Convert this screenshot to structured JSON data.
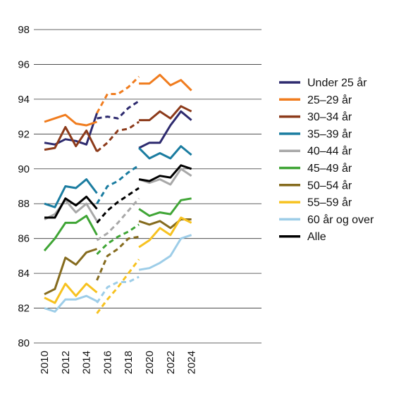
{
  "chart_data": {
    "type": "line",
    "title": "",
    "xlabel": "",
    "ylabel": "",
    "xlim": [
      2010,
      2024.5
    ],
    "ylim": [
      80,
      98
    ],
    "yticks": [
      80,
      82,
      84,
      86,
      88,
      90,
      92,
      94,
      96,
      98
    ],
    "xticks": [
      2010,
      2012,
      2014,
      2016,
      2018,
      2020,
      2022,
      2024
    ],
    "grid": "horizontal",
    "legend_position": "right",
    "series": [
      {
        "name": "Under 25 år",
        "color": "#2d2a6e",
        "segments": [
          {
            "style": "solid",
            "x": [
              2010,
              2011,
              2012,
              2013,
              2014,
              2015
            ],
            "y": [
              91.5,
              91.4,
              91.7,
              91.6,
              91.4,
              93.2
            ]
          },
          {
            "style": "dashed",
            "x": [
              2015,
              2016,
              2017,
              2018,
              2019
            ],
            "y": [
              92.9,
              93.0,
              92.9,
              93.5,
              93.9
            ]
          },
          {
            "style": "solid",
            "x": [
              2019,
              2020,
              2021,
              2022,
              2023,
              2024
            ],
            "y": [
              91.2,
              91.5,
              91.5,
              92.5,
              93.3,
              92.8
            ]
          }
        ]
      },
      {
        "name": "25–29 år",
        "color": "#f07c1e",
        "segments": [
          {
            "style": "solid",
            "x": [
              2010,
              2011,
              2012,
              2013,
              2014,
              2015
            ],
            "y": [
              92.7,
              92.9,
              93.1,
              92.6,
              92.5,
              92.7
            ]
          },
          {
            "style": "dashed",
            "x": [
              2015,
              2016,
              2017,
              2018,
              2019
            ],
            "y": [
              93.2,
              94.3,
              94.3,
              94.7,
              95.3
            ]
          },
          {
            "style": "solid",
            "x": [
              2019,
              2020,
              2021,
              2022,
              2023,
              2024
            ],
            "y": [
              94.9,
              94.9,
              95.4,
              94.8,
              95.1,
              94.5
            ]
          }
        ]
      },
      {
        "name": "30–34 år",
        "color": "#8c3a1a",
        "segments": [
          {
            "style": "solid",
            "x": [
              2010,
              2011,
              2012,
              2013,
              2014,
              2015
            ],
            "y": [
              91.1,
              91.2,
              92.4,
              91.3,
              92.2,
              91.0
            ]
          },
          {
            "style": "dashed",
            "x": [
              2015,
              2016,
              2017,
              2018,
              2019
            ],
            "y": [
              91.0,
              91.5,
              92.2,
              92.3,
              92.7
            ]
          },
          {
            "style": "solid",
            "x": [
              2019,
              2020,
              2021,
              2022,
              2023,
              2024
            ],
            "y": [
              92.8,
              92.8,
              93.3,
              92.9,
              93.6,
              93.3
            ]
          }
        ]
      },
      {
        "name": "35–39 år",
        "color": "#1a7ca0",
        "segments": [
          {
            "style": "solid",
            "x": [
              2010,
              2011,
              2012,
              2013,
              2014,
              2015
            ],
            "y": [
              88.0,
              87.8,
              89.0,
              88.9,
              89.4,
              88.6
            ]
          },
          {
            "style": "dashed",
            "x": [
              2015,
              2016,
              2017,
              2018,
              2019
            ],
            "y": [
              88.0,
              89.0,
              89.3,
              89.8,
              90.2
            ]
          },
          {
            "style": "solid",
            "x": [
              2019,
              2020,
              2021,
              2022,
              2023,
              2024
            ],
            "y": [
              91.2,
              90.6,
              90.9,
              90.6,
              91.3,
              90.8
            ]
          }
        ]
      },
      {
        "name": "40–44 år",
        "color": "#a8a8a8",
        "segments": [
          {
            "style": "solid",
            "x": [
              2010,
              2011,
              2012,
              2013,
              2014,
              2015
            ],
            "y": [
              87.1,
              87.4,
              88.2,
              87.5,
              88.0,
              87.0
            ]
          },
          {
            "style": "dashed",
            "x": [
              2015,
              2016,
              2017,
              2018,
              2019
            ],
            "y": [
              85.9,
              86.3,
              86.9,
              87.6,
              88.3
            ]
          },
          {
            "style": "solid",
            "x": [
              2019,
              2020,
              2021,
              2022,
              2023,
              2024
            ],
            "y": [
              89.4,
              89.2,
              89.4,
              89.1,
              90.0,
              89.6
            ]
          }
        ]
      },
      {
        "name": "45–49 år",
        "color": "#3fa535",
        "segments": [
          {
            "style": "solid",
            "x": [
              2010,
              2011,
              2012,
              2013,
              2014,
              2015
            ],
            "y": [
              85.3,
              86.0,
              86.9,
              86.9,
              87.3,
              86.2
            ]
          },
          {
            "style": "dashed",
            "x": [
              2015,
              2016,
              2017,
              2018,
              2019
            ],
            "y": [
              85.1,
              85.7,
              86.1,
              86.4,
              86.8
            ]
          },
          {
            "style": "solid",
            "x": [
              2019,
              2020,
              2021,
              2022,
              2023,
              2024
            ],
            "y": [
              87.7,
              87.3,
              87.5,
              87.4,
              88.2,
              88.3
            ]
          }
        ]
      },
      {
        "name": "50–54 år",
        "color": "#856b1e",
        "segments": [
          {
            "style": "solid",
            "x": [
              2010,
              2011,
              2012,
              2013,
              2014,
              2015
            ],
            "y": [
              82.8,
              83.1,
              84.9,
              84.5,
              85.2,
              85.4
            ]
          },
          {
            "style": "dashed",
            "x": [
              2015,
              2016,
              2017,
              2018,
              2019
            ],
            "y": [
              83.6,
              85.0,
              85.4,
              86.0,
              86.1
            ]
          },
          {
            "style": "solid",
            "x": [
              2019,
              2020,
              2021,
              2022,
              2023,
              2024
            ],
            "y": [
              87.0,
              86.8,
              87.0,
              86.6,
              87.1,
              87.1
            ]
          }
        ]
      },
      {
        "name": "55–59 år",
        "color": "#f7c220",
        "segments": [
          {
            "style": "solid",
            "x": [
              2010,
              2011,
              2012,
              2013,
              2014,
              2015
            ],
            "y": [
              82.6,
              82.3,
              83.4,
              82.7,
              83.4,
              82.9
            ]
          },
          {
            "style": "dashed",
            "x": [
              2015,
              2016,
              2017,
              2018,
              2019
            ],
            "y": [
              81.7,
              82.5,
              83.2,
              84.0,
              84.8
            ]
          },
          {
            "style": "solid",
            "x": [
              2019,
              2020,
              2021,
              2022,
              2023,
              2024
            ],
            "y": [
              85.5,
              85.9,
              86.6,
              86.2,
              87.2,
              86.9
            ]
          }
        ]
      },
      {
        "name": "60 år og over",
        "color": "#9dcde8",
        "segments": [
          {
            "style": "solid",
            "x": [
              2010,
              2011,
              2012,
              2013,
              2014,
              2015
            ],
            "y": [
              82.0,
              81.8,
              82.5,
              82.5,
              82.7,
              82.4
            ]
          },
          {
            "style": "dashed",
            "x": [
              2015,
              2016,
              2017,
              2018,
              2019
            ],
            "y": [
              82.3,
              83.2,
              83.5,
              83.5,
              83.8
            ]
          },
          {
            "style": "solid",
            "x": [
              2019,
              2020,
              2021,
              2022,
              2023,
              2024
            ],
            "y": [
              84.2,
              84.3,
              84.6,
              85.0,
              86.0,
              86.2
            ]
          }
        ]
      },
      {
        "name": "Alle",
        "color": "#000000",
        "segments": [
          {
            "style": "solid",
            "x": [
              2010,
              2011,
              2012,
              2013,
              2014,
              2015
            ],
            "y": [
              87.2,
              87.2,
              88.3,
              87.9,
              88.4,
              87.7
            ]
          },
          {
            "style": "dashed",
            "x": [
              2015,
              2016,
              2017,
              2018,
              2019
            ],
            "y": [
              86.9,
              87.6,
              88.1,
              88.5,
              88.9
            ]
          },
          {
            "style": "solid",
            "x": [
              2019,
              2020,
              2021,
              2022,
              2023,
              2024
            ],
            "y": [
              89.4,
              89.3,
              89.6,
              89.5,
              90.2,
              90.0
            ]
          }
        ]
      }
    ]
  }
}
